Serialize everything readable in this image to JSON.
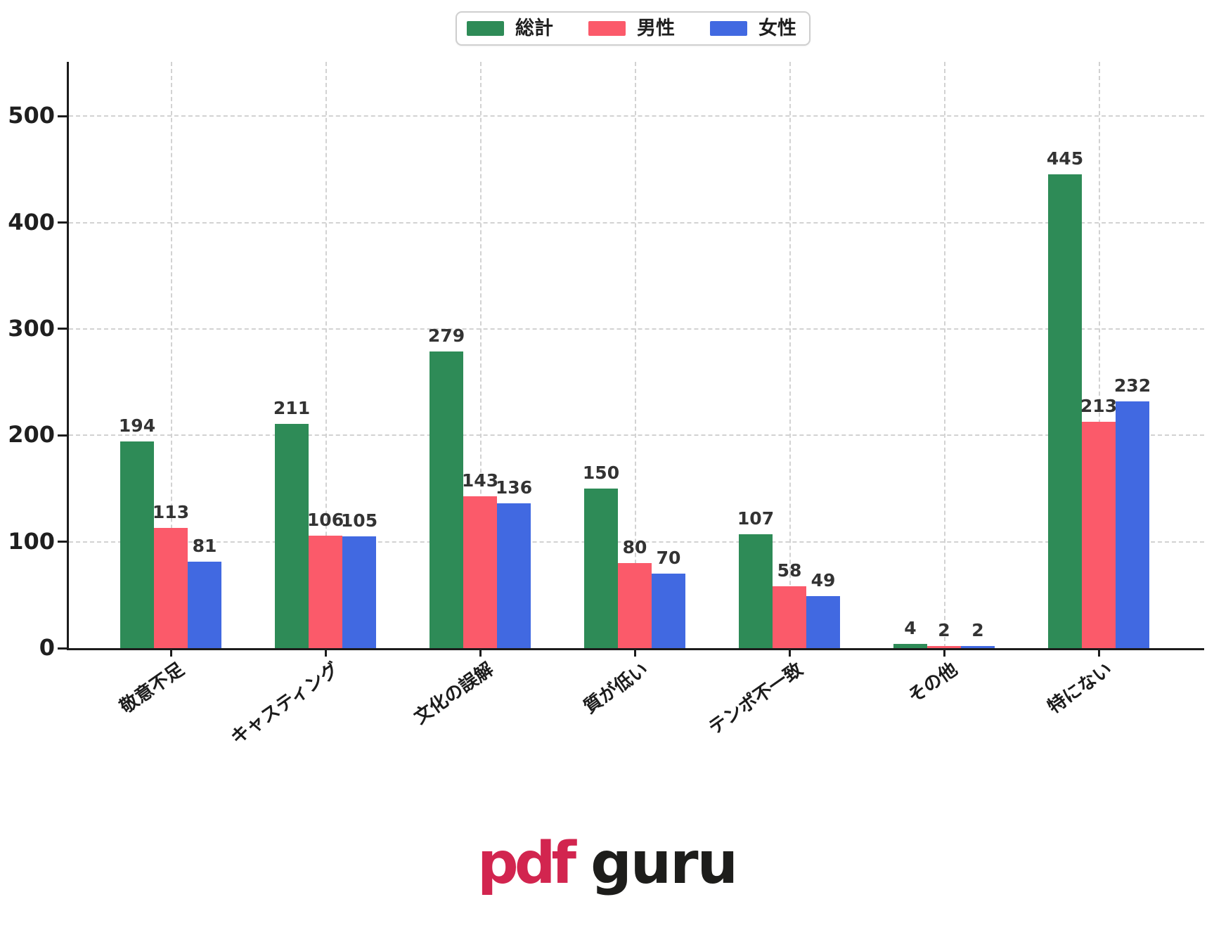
{
  "chart_data": {
    "type": "bar",
    "title": "",
    "categories": [
      "敬意不足",
      "キャスティング",
      "文化の誤解",
      "質が低い",
      "テンポ不一致",
      "その他",
      "特にない"
    ],
    "series": [
      {
        "name": "総計",
        "color": "#2e8b57",
        "values": [
          194,
          211,
          279,
          150,
          107,
          4,
          445
        ]
      },
      {
        "name": "男性",
        "color": "#fb5a6a",
        "values": [
          113,
          106,
          143,
          80,
          58,
          2,
          213
        ]
      },
      {
        "name": "女性",
        "color": "#4169e1",
        "values": [
          81,
          105,
          136,
          70,
          49,
          2,
          232
        ]
      }
    ],
    "xlabel": "",
    "ylabel": "",
    "ylim": [
      0,
      551
    ],
    "yticks": [
      0,
      100,
      200,
      300,
      400,
      500
    ],
    "grid": true,
    "grid_style": "dashed",
    "bar_value_labels": true,
    "legend_position": "top-center"
  },
  "footer": {
    "logo_pdf": "pdf",
    "logo_guru": "guru"
  },
  "colors": {
    "background": "#ffffff",
    "axis": "#1c1c1c",
    "grid": "#d2d2d2",
    "tick_label": "#1f1f1f",
    "value_label": "#333333",
    "legend_border": "#cfcfcf",
    "logo_pdf": "#d2254f",
    "logo_guru": "#1d1d1b"
  }
}
